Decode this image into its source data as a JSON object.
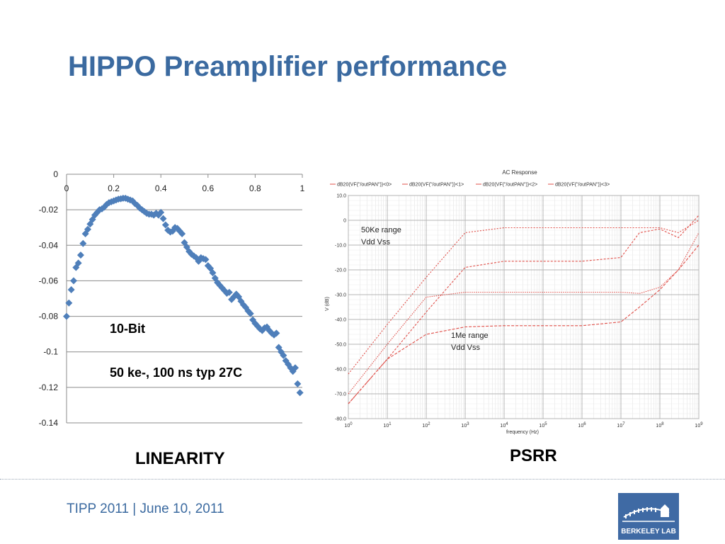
{
  "slide": {
    "title": "HIPPO Preamplifier performance",
    "footer": "TIPP 2011 | June 10, 2011",
    "logo_text": "BERKELEY LAB",
    "linearity_caption": "LINEARITY",
    "psrr_caption": "PSRR",
    "accent_color": "#3b6aa0"
  },
  "chart_data": [
    {
      "type": "scatter",
      "title": "",
      "xlabel": "",
      "ylabel": "",
      "xlim": [
        0,
        1
      ],
      "ylim": [
        -0.14,
        0
      ],
      "x_ticks": [
        "0",
        "0.2",
        "0.4",
        "0.6",
        "0.8",
        "1"
      ],
      "y_ticks": [
        "0",
        "-0.02",
        "-0.04",
        "-0.06",
        "-0.08",
        "-0.1",
        "-0.12",
        "-0.14"
      ],
      "grid": "horizontal",
      "marker": "diamond",
      "marker_color": "#4f7fba",
      "annotations": [
        "10-Bit",
        "50 ke-, 100 ns typ 27C"
      ],
      "x": [
        0.0,
        0.01,
        0.02,
        0.03,
        0.04,
        0.05,
        0.06,
        0.07,
        0.08,
        0.09,
        0.1,
        0.11,
        0.12,
        0.13,
        0.14,
        0.15,
        0.16,
        0.17,
        0.18,
        0.19,
        0.2,
        0.21,
        0.22,
        0.23,
        0.24,
        0.25,
        0.26,
        0.27,
        0.28,
        0.29,
        0.3,
        0.31,
        0.32,
        0.33,
        0.34,
        0.35,
        0.36,
        0.37,
        0.38,
        0.39,
        0.4,
        0.41,
        0.42,
        0.43,
        0.44,
        0.45,
        0.46,
        0.47,
        0.48,
        0.49,
        0.5,
        0.51,
        0.52,
        0.53,
        0.54,
        0.55,
        0.56,
        0.57,
        0.58,
        0.59,
        0.6,
        0.61,
        0.62,
        0.63,
        0.64,
        0.65,
        0.66,
        0.67,
        0.68,
        0.69,
        0.7,
        0.71,
        0.72,
        0.73,
        0.74,
        0.75,
        0.76,
        0.77,
        0.78,
        0.79,
        0.8,
        0.81,
        0.82,
        0.83,
        0.84,
        0.85,
        0.86,
        0.87,
        0.88,
        0.89,
        0.9,
        0.91,
        0.92,
        0.93,
        0.94,
        0.95,
        0.96,
        0.97,
        0.98,
        0.99
      ],
      "y": [
        -0.08,
        -0.0725,
        -0.065,
        -0.06,
        -0.0525,
        -0.05,
        -0.0455,
        -0.039,
        -0.0335,
        -0.031,
        -0.028,
        -0.0255,
        -0.023,
        -0.0215,
        -0.02,
        -0.0195,
        -0.0185,
        -0.017,
        -0.016,
        -0.0155,
        -0.015,
        -0.0145,
        -0.014,
        -0.0138,
        -0.0135,
        -0.0135,
        -0.014,
        -0.0145,
        -0.015,
        -0.0165,
        -0.0175,
        -0.019,
        -0.02,
        -0.021,
        -0.022,
        -0.0225,
        -0.0225,
        -0.023,
        -0.022,
        -0.023,
        -0.0215,
        -0.025,
        -0.0285,
        -0.0315,
        -0.0325,
        -0.032,
        -0.03,
        -0.0305,
        -0.032,
        -0.0335,
        -0.0385,
        -0.041,
        -0.0435,
        -0.045,
        -0.046,
        -0.047,
        -0.049,
        -0.047,
        -0.0475,
        -0.048,
        -0.0515,
        -0.053,
        -0.0555,
        -0.0585,
        -0.061,
        -0.0625,
        -0.064,
        -0.0655,
        -0.067,
        -0.0665,
        -0.0705,
        -0.069,
        -0.0675,
        -0.069,
        -0.0715,
        -0.0735,
        -0.075,
        -0.077,
        -0.0785,
        -0.082,
        -0.084,
        -0.0855,
        -0.087,
        -0.088,
        -0.0865,
        -0.086,
        -0.088,
        -0.0895,
        -0.0905,
        -0.0895,
        -0.0975,
        -0.1,
        -0.102,
        -0.105,
        -0.107,
        -0.109,
        -0.111,
        -0.109,
        -0.118,
        -0.123
      ]
    },
    {
      "type": "line",
      "title": "AC Response",
      "xlabel": "frequency (Hz)",
      "ylabel": "V (dB)",
      "xscale": "log",
      "xlim": [
        1,
        1000000000
      ],
      "ylim": [
        -80,
        10
      ],
      "x_ticks": [
        "10^0",
        "10^1",
        "10^2",
        "10^3",
        "10^4",
        "10^5",
        "10^6",
        "10^7",
        "10^8",
        "10^9"
      ],
      "y_ticks": [
        "10.0",
        "0",
        "-10.0",
        "-20.0",
        "-30.0",
        "-40.0",
        "-50.0",
        "-60.0",
        "-70.0",
        "-80.0"
      ],
      "grid": "both",
      "legend_position": "top",
      "line_color": "#e0504a",
      "annotations": [
        "50Ke range",
        "Vdd Vss",
        "1Me range",
        "Vdd Vss"
      ],
      "series": [
        {
          "name": "dB20(VF(\"/outPAN\"))<0>",
          "x": [
            1,
            10,
            100,
            1000,
            10000,
            100000,
            1000000,
            10000000,
            30000000,
            100000000,
            300000000,
            1000000000
          ],
          "values": [
            -62,
            -42,
            -23,
            -5,
            -3,
            -3,
            -3,
            -3,
            -3,
            -3,
            -5,
            0
          ]
        },
        {
          "name": "dB20(VF(\"/outPAN\"))<1>",
          "x": [
            1,
            10,
            100,
            1000,
            10000,
            100000,
            1000000,
            10000000,
            30000000,
            100000000,
            300000000,
            1000000000
          ],
          "values": [
            -74,
            -56,
            -37,
            -19,
            -16.5,
            -16.5,
            -16.5,
            -15,
            -5,
            -3.5,
            -7,
            2
          ]
        },
        {
          "name": "dB20(VF(\"/outPAN\"))<2>",
          "x": [
            1,
            10,
            100,
            1000,
            10000,
            100000,
            1000000,
            10000000,
            30000000,
            100000000,
            300000000,
            1000000000
          ],
          "values": [
            -70,
            -50,
            -31,
            -29,
            -29,
            -29,
            -29,
            -29,
            -29.5,
            -27,
            -20,
            -5
          ]
        },
        {
          "name": "dB20(VF(\"/outPAN\"))<3>",
          "x": [
            1,
            10,
            100,
            1000,
            10000,
            100000,
            1000000,
            10000000,
            30000000,
            100000000,
            300000000,
            1000000000
          ],
          "values": [
            -74,
            -56,
            -46,
            -43,
            -42.5,
            -42.5,
            -42.5,
            -41,
            -35,
            -28,
            -20,
            -10
          ]
        }
      ]
    }
  ]
}
